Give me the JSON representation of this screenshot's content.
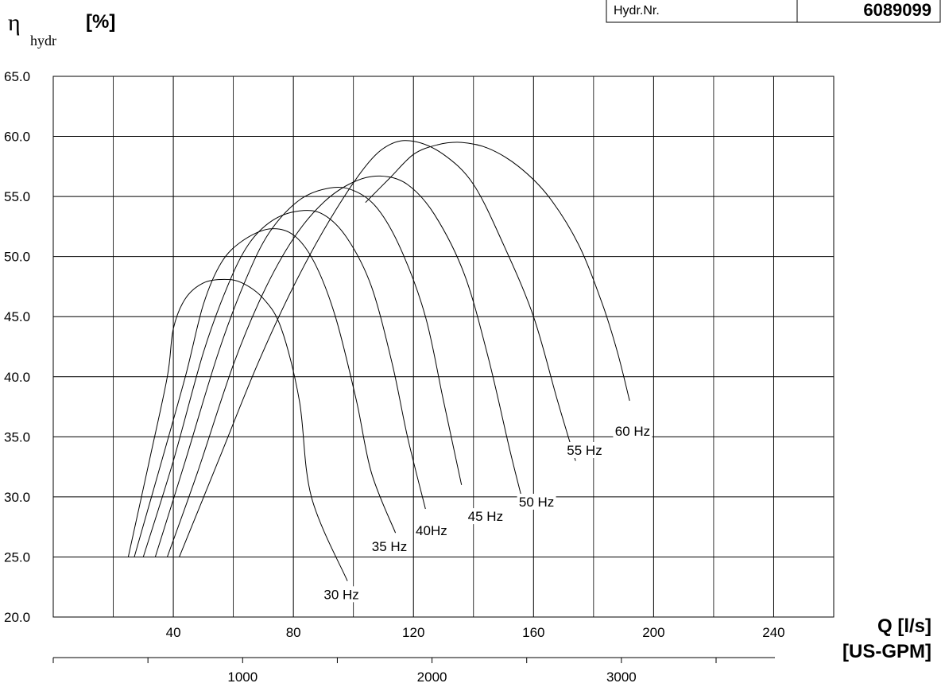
{
  "header": {
    "hydr_label": "Hydr.Nr.",
    "hydr_value": "6089099"
  },
  "chart_data": {
    "type": "line",
    "y_axis_label": "η",
    "y_axis_subscript": "hydr",
    "y_axis_unit": "[%]",
    "x_axis_label": "Q  [l/s]",
    "x2_axis_label": "[US-GPM]",
    "xlim": [
      0,
      260
    ],
    "ylim": [
      20,
      65
    ],
    "grid": true,
    "y_ticks": [
      "65.0",
      "60.0",
      "55.0",
      "50.0",
      "45.0",
      "40.0",
      "35.0",
      "30.0",
      "25.0",
      "20.0"
    ],
    "y_tick_values": [
      65,
      60,
      55,
      50,
      45,
      40,
      35,
      30,
      25,
      20
    ],
    "x_ticks": [
      "40",
      "80",
      "120",
      "160",
      "200",
      "240"
    ],
    "x_tick_values": [
      40,
      80,
      120,
      160,
      200,
      240
    ],
    "x2_ticks": [
      "1000",
      "2000",
      "3000"
    ],
    "x2_tick_values": [
      1000,
      2000,
      3000
    ],
    "series": [
      {
        "name": "30 Hz",
        "points": [
          [
            25,
            25
          ],
          [
            32,
            33
          ],
          [
            38,
            40
          ],
          [
            40,
            44
          ],
          [
            44,
            46.5
          ],
          [
            50,
            47.8
          ],
          [
            57,
            48.1
          ],
          [
            63,
            47.8
          ],
          [
            70,
            46.5
          ],
          [
            76,
            44
          ],
          [
            82,
            38
          ],
          [
            86,
            30
          ],
          [
            98,
            23
          ]
        ]
      },
      {
        "name": "35 Hz",
        "points": [
          [
            27,
            25
          ],
          [
            35,
            32
          ],
          [
            44,
            40
          ],
          [
            50,
            46
          ],
          [
            56,
            49.5
          ],
          [
            63,
            51.3
          ],
          [
            72,
            52.3
          ],
          [
            80,
            51.8
          ],
          [
            87,
            49.5
          ],
          [
            94,
            45
          ],
          [
            101,
            38
          ],
          [
            106,
            32
          ],
          [
            114,
            27
          ]
        ]
      },
      {
        "name": "40Hz",
        "points": [
          [
            30,
            25
          ],
          [
            40,
            33
          ],
          [
            50,
            42
          ],
          [
            58,
            47.5
          ],
          [
            65,
            51
          ],
          [
            73,
            53
          ],
          [
            82,
            53.8
          ],
          [
            90,
            53.5
          ],
          [
            98,
            51.5
          ],
          [
            106,
            47.5
          ],
          [
            113,
            41
          ],
          [
            118,
            35
          ],
          [
            124,
            29
          ]
        ]
      },
      {
        "name": "45 Hz",
        "points": [
          [
            34,
            25
          ],
          [
            44,
            33
          ],
          [
            55,
            42
          ],
          [
            64,
            48
          ],
          [
            72,
            52
          ],
          [
            82,
            54.7
          ],
          [
            92,
            55.7
          ],
          [
            100,
            55.5
          ],
          [
            108,
            54
          ],
          [
            116,
            50.5
          ],
          [
            124,
            45
          ],
          [
            130,
            38
          ],
          [
            136,
            31
          ]
        ]
      },
      {
        "name": "50 Hz",
        "points": [
          [
            38,
            25
          ],
          [
            48,
            32
          ],
          [
            60,
            41
          ],
          [
            70,
            47
          ],
          [
            80,
            51.5
          ],
          [
            90,
            54.5
          ],
          [
            100,
            56.2
          ],
          [
            109,
            56.7
          ],
          [
            118,
            56
          ],
          [
            127,
            53.5
          ],
          [
            137,
            48.5
          ],
          [
            145,
            41.5
          ],
          [
            152,
            34
          ],
          [
            156,
            30
          ]
        ]
      },
      {
        "name": "55 Hz",
        "points": [
          [
            42,
            25
          ],
          [
            55,
            33
          ],
          [
            68,
            41
          ],
          [
            80,
            47.5
          ],
          [
            92,
            53
          ],
          [
            104,
            57.5
          ],
          [
            112,
            59.3
          ],
          [
            120,
            59.6
          ],
          [
            130,
            58.5
          ],
          [
            140,
            56
          ],
          [
            150,
            51
          ],
          [
            160,
            45
          ],
          [
            168,
            38
          ],
          [
            174,
            33
          ]
        ]
      },
      {
        "name": "60 Hz",
        "points": [
          [
            104,
            54.5
          ],
          [
            112,
            56.5
          ],
          [
            120,
            58.5
          ],
          [
            128,
            59.3
          ],
          [
            136,
            59.5
          ],
          [
            145,
            59
          ],
          [
            155,
            57.5
          ],
          [
            165,
            55
          ],
          [
            175,
            51
          ],
          [
            183,
            46
          ],
          [
            188,
            42
          ],
          [
            192,
            38
          ]
        ]
      }
    ],
    "series_labels": [
      {
        "text": "30 Hz",
        "at": [
          96,
          21.5
        ]
      },
      {
        "text": "35 Hz",
        "at": [
          112,
          25.5
        ]
      },
      {
        "text": "40Hz",
        "at": [
          126,
          26.8
        ]
      },
      {
        "text": "45 Hz",
        "at": [
          144,
          28
        ]
      },
      {
        "text": "50 Hz",
        "at": [
          161,
          29.2
        ]
      },
      {
        "text": "55 Hz",
        "at": [
          177,
          33.5
        ]
      },
      {
        "text": "60 Hz",
        "at": [
          193,
          35.1
        ]
      }
    ]
  }
}
